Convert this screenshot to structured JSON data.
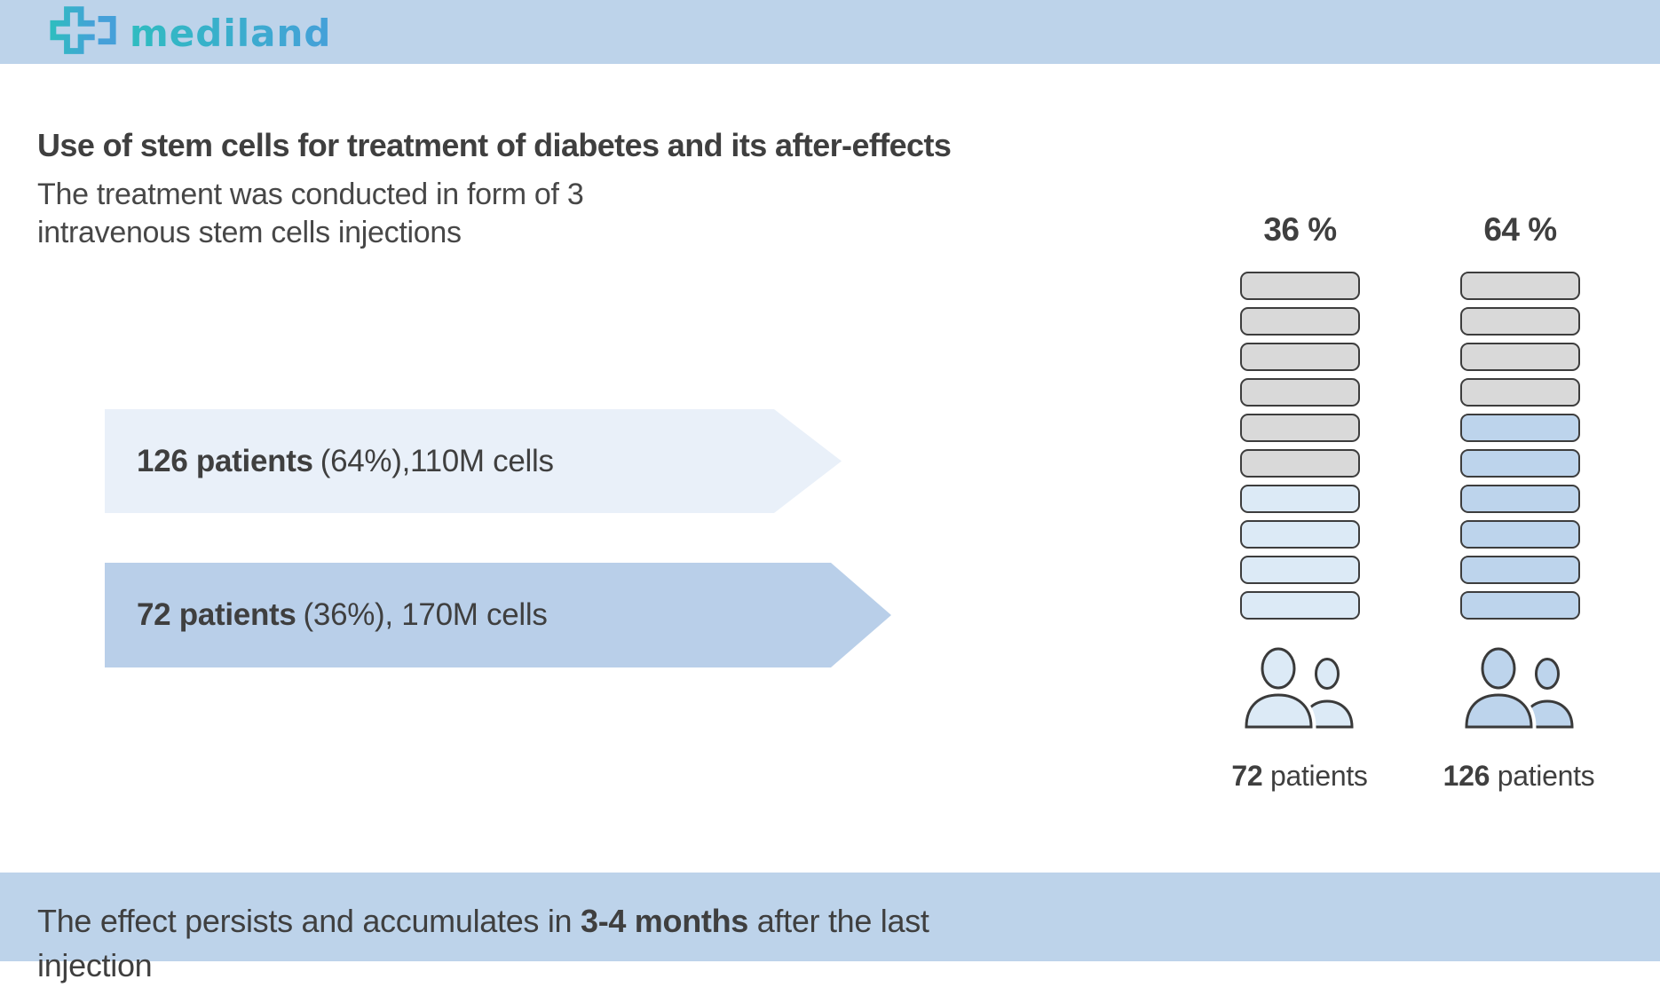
{
  "brand": {
    "name": "mediland"
  },
  "colors": {
    "header_bg": "#bdd3ea",
    "footer_bg": "#bdd3ea",
    "arrow_light": "#e9f0f9",
    "arrow_medium": "#b9cfe9",
    "unit_base": "#d9d9d9",
    "unit_border": "#3d3d3d",
    "logo_teal": "#2fbcc0",
    "logo_blue": "#45a0d9",
    "text": "#3f3f3f"
  },
  "title": "Use of stem cells for treatment of diabetes and its after-effects",
  "subtitle": {
    "line1": "The treatment was conducted in form of 3",
    "line2": "intravenous stem cells injections"
  },
  "arrows": [
    {
      "bold": "126 patients",
      "rest": "(64%),110M cells"
    },
    {
      "bold": "72 patients",
      "rest": "(36%), 170M cells"
    }
  ],
  "chart": {
    "base_color": "#d9d9d9",
    "columns": [
      {
        "percent": "36 %",
        "units": 10,
        "highlighted": 4,
        "highlight_color": "#dceaf6",
        "patients_value": "72",
        "patients_word": " patients"
      },
      {
        "percent": "64 %",
        "units": 10,
        "highlighted": 6,
        "highlight_color": "#bdd4ec",
        "patients_value": "126",
        "patients_word": " patients"
      }
    ]
  },
  "chart_data": {
    "type": "bar",
    "subtype": "pictograph-unit-columns",
    "categories": [
      "72 patients",
      "126 patients"
    ],
    "series": [
      {
        "name": "share_percent",
        "values": [
          36,
          64
        ]
      },
      {
        "name": "patients",
        "values": [
          72,
          126
        ]
      },
      {
        "name": "cells_millions",
        "values": [
          170,
          110
        ]
      },
      {
        "name": "highlighted_units",
        "values": [
          4,
          6
        ]
      },
      {
        "name": "total_units",
        "values": [
          10,
          10
        ]
      }
    ],
    "title": "Use of stem cells for treatment of diabetes and its after-effects",
    "legend": false,
    "grid": false
  },
  "footer": {
    "pre": "The effect persists and accumulates in ",
    "bold": "3-4 months",
    "post": " after the last injection"
  }
}
